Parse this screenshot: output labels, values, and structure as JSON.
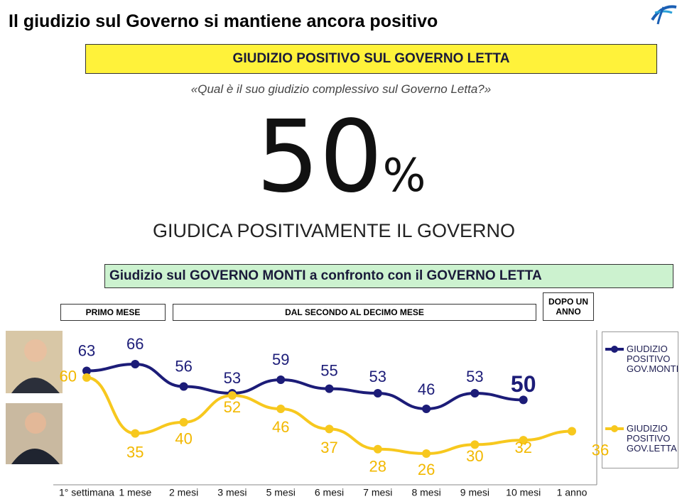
{
  "header": {
    "title": "Il giudizio sul Governo si mantiene ancora positivo"
  },
  "banner": "GIUDIZIO POSITIVO SUL GOVERNO LETTA",
  "question": "«Qual è il suo giudizio complessivo sul Governo Letta?»",
  "big_value": "50",
  "big_unit": "%",
  "big_caption": "GIUDICA POSITIVAMENTE IL GOVERNO",
  "comparison_title": "Giudizio sul GOVERNO MONTI a confronto con il GOVERNO LETTA",
  "periods": [
    "PRIMO MESE",
    "DAL SECONDO AL DECIMO MESE",
    "DOPO UN ANNO"
  ],
  "chart_data": {
    "type": "line",
    "categories": [
      "1° settimana",
      "1 mese",
      "2 mesi",
      "3 mesi",
      "5 mesi",
      "6 mesi",
      "7 mesi",
      "8 mesi",
      "9 mesi",
      "10 mesi",
      "1 anno"
    ],
    "series": [
      {
        "name": "GIUDIZIO POSITIVO GOV.MONTI",
        "color": "#1c1c78",
        "values": [
          63,
          66,
          56,
          53,
          59,
          55,
          53,
          46,
          53,
          50,
          null
        ]
      },
      {
        "name": "GIUDIZIO POSITIVO GOV.LETTA",
        "color": "#f7c81e",
        "values": [
          60,
          35,
          40,
          52,
          46,
          37,
          28,
          26,
          30,
          32,
          36
        ]
      }
    ]
  }
}
